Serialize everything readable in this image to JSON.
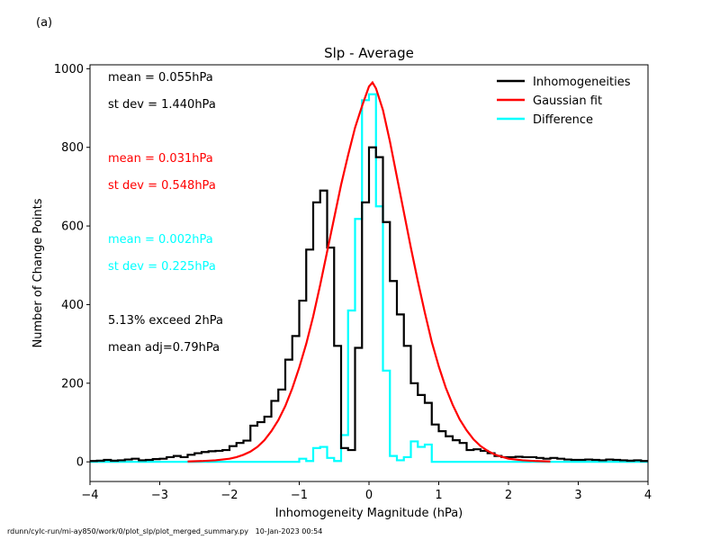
{
  "panel_label": "(a)",
  "footer": {
    "path": "rdunn/cylc-run/mi-ay850/work/0/plot_slp/plot_merged_summary.py",
    "date": "10-Jan-2023 00:54"
  },
  "chart_data": {
    "type": "histogram",
    "title": "Slp - Average",
    "xlabel": "Inhomogeneity Magnitude (hPa)",
    "ylabel": "Number of Change Points",
    "xlim": [
      -4,
      4
    ],
    "ylim": [
      -50,
      1010
    ],
    "xticks": [
      -4,
      -3,
      -2,
      -1,
      0,
      1,
      2,
      3,
      4
    ],
    "yticks": [
      0,
      200,
      400,
      600,
      800,
      1000
    ],
    "grid": false,
    "legend_position": "top-right",
    "annotations": [
      {
        "text": "mean =  0.055hPa",
        "color": "#000000"
      },
      {
        "text": "st dev =  1.440hPa",
        "color": "#000000"
      },
      {
        "text": "mean =  0.031hPa",
        "color": "#ff0000"
      },
      {
        "text": "st dev =  0.548hPa",
        "color": "#ff0000"
      },
      {
        "text": "mean =  0.002hPa",
        "color": "#00ffff"
      },
      {
        "text": "st dev =  0.225hPa",
        "color": "#00ffff"
      },
      {
        "text": "5.13% exceed 2hPa",
        "color": "#000000"
      },
      {
        "text": "mean adj=0.79hPa",
        "color": "#000000"
      }
    ],
    "series": [
      {
        "name": "Inhomogeneities",
        "kind": "step",
        "color": "#000000",
        "bin_edges": [
          -4.0,
          -3.9,
          -3.8,
          -3.7,
          -3.6,
          -3.5,
          -3.4,
          -3.3,
          -3.2,
          -3.1,
          -3.0,
          -2.9,
          -2.8,
          -2.7,
          -2.6,
          -2.5,
          -2.4,
          -2.3,
          -2.2,
          -2.1,
          -2.0,
          -1.9,
          -1.8,
          -1.7,
          -1.6,
          -1.5,
          -1.4,
          -1.3,
          -1.2,
          -1.1,
          -1.0,
          -0.9,
          -0.8,
          -0.7,
          -0.6,
          -0.5,
          -0.4,
          -0.3,
          -0.2,
          -0.1,
          0.0,
          0.1,
          0.2,
          0.3,
          0.4,
          0.5,
          0.6,
          0.7,
          0.8,
          0.9,
          1.0,
          1.1,
          1.2,
          1.3,
          1.4,
          1.5,
          1.6,
          1.7,
          1.8,
          1.9,
          2.0,
          2.1,
          2.2,
          2.3,
          2.4,
          2.5,
          2.6,
          2.7,
          2.8,
          2.9,
          3.0,
          3.1,
          3.2,
          3.3,
          3.4,
          3.5,
          3.6,
          3.7,
          3.8,
          3.9,
          4.0
        ],
        "values": [
          2,
          3,
          5,
          3,
          4,
          6,
          8,
          4,
          5,
          7,
          8,
          12,
          15,
          12,
          18,
          22,
          25,
          27,
          28,
          30,
          40,
          48,
          54,
          92,
          101,
          115,
          155,
          184,
          260,
          320,
          410,
          540,
          660,
          690,
          545,
          295,
          35,
          30,
          290,
          660,
          800,
          775,
          610,
          460,
          375,
          295,
          200,
          170,
          150,
          95,
          78,
          65,
          55,
          48,
          30,
          32,
          28,
          22,
          15,
          12,
          12,
          13,
          12,
          12,
          10,
          8,
          10,
          8,
          6,
          5,
          5,
          6,
          5,
          4,
          6,
          5,
          4,
          3,
          4,
          2
        ]
      },
      {
        "name": "Gaussian fit",
        "kind": "line",
        "color": "#ff0000",
        "x": [
          -2.6,
          -2.4,
          -2.2,
          -2.0,
          -1.9,
          -1.8,
          -1.7,
          -1.6,
          -1.5,
          -1.4,
          -1.3,
          -1.2,
          -1.1,
          -1.0,
          -0.9,
          -0.8,
          -0.7,
          -0.6,
          -0.5,
          -0.4,
          -0.3,
          -0.2,
          -0.1,
          0.0,
          0.05,
          0.1,
          0.2,
          0.3,
          0.4,
          0.5,
          0.6,
          0.7,
          0.8,
          0.9,
          1.0,
          1.1,
          1.2,
          1.3,
          1.4,
          1.5,
          1.6,
          1.7,
          1.8,
          1.9,
          2.0,
          2.2,
          2.4,
          2.6
        ],
        "y": [
          1,
          2,
          4,
          8,
          12,
          18,
          26,
          38,
          55,
          78,
          106,
          142,
          187,
          240,
          300,
          370,
          450,
          535,
          620,
          705,
          780,
          850,
          905,
          955,
          965,
          950,
          895,
          815,
          725,
          635,
          545,
          460,
          380,
          305,
          243,
          189,
          145,
          108,
          80,
          57,
          40,
          28,
          19,
          13,
          8,
          4,
          2,
          1
        ]
      },
      {
        "name": "Difference",
        "kind": "step",
        "color": "#00ffff",
        "bin_edges": [
          -4.0,
          -1.0,
          -0.9,
          -0.8,
          -0.7,
          -0.6,
          -0.5,
          -0.4,
          -0.3,
          -0.2,
          -0.1,
          0.0,
          0.1,
          0.2,
          0.3,
          0.4,
          0.5,
          0.6,
          0.7,
          0.8,
          0.9,
          4.0
        ],
        "values": [
          0,
          8,
          2,
          35,
          38,
          10,
          2,
          68,
          385,
          618,
          920,
          935,
          650,
          232,
          15,
          4,
          12,
          52,
          38,
          44,
          0
        ]
      }
    ]
  }
}
